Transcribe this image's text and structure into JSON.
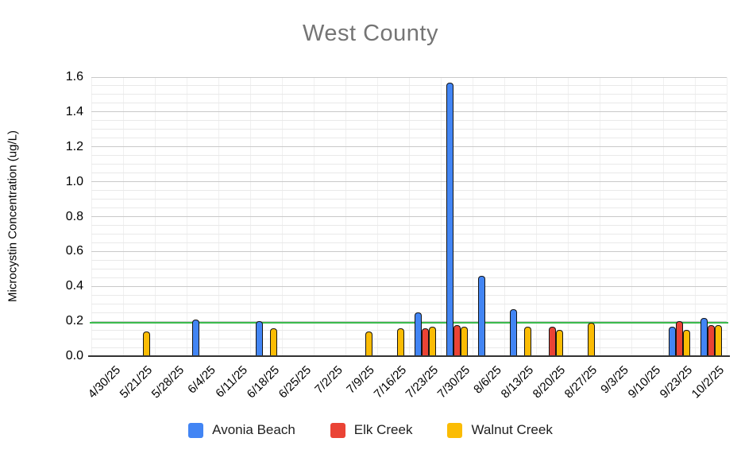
{
  "chart_data": {
    "type": "bar",
    "title": "West County",
    "xlabel": "",
    "ylabel": "Microcystin Concentration (ug/L)",
    "ylim": [
      0,
      1.6
    ],
    "y_major_step": 0.2,
    "y_minor_step": 0.05,
    "y_tick_labels": [
      "0.0",
      "0.2",
      "0.4",
      "0.6",
      "0.8",
      "1.0",
      "1.2",
      "1.4",
      "1.6"
    ],
    "grid": true,
    "legend_position": "bottom",
    "threshold_line": {
      "value": 0.19,
      "color": "#3cbb4e"
    },
    "categories": [
      "4/30/25",
      "5/21/25",
      "5/28/25",
      "6/4/25",
      "6/11/25",
      "6/18/25",
      "6/25/25",
      "7/2/25",
      "7/9/25",
      "7/16/25",
      "7/23/25",
      "7/30/25",
      "8/6/25",
      "8/13/25",
      "8/20/25",
      "8/27/25",
      "9/3/25",
      "9/10/25",
      "9/23/25",
      "10/2/25"
    ],
    "series": [
      {
        "name": "Avonia Beach",
        "color": "#4285F4",
        "values": [
          null,
          null,
          null,
          0.21,
          null,
          0.2,
          null,
          null,
          null,
          null,
          0.25,
          1.57,
          0.46,
          0.27,
          null,
          null,
          null,
          null,
          0.17,
          0.22
        ]
      },
      {
        "name": "Elk Creek",
        "color": "#EA4335",
        "values": [
          null,
          null,
          null,
          null,
          null,
          null,
          null,
          null,
          null,
          null,
          0.16,
          0.18,
          null,
          null,
          0.17,
          null,
          null,
          null,
          0.2,
          0.18
        ]
      },
      {
        "name": "Walnut Creek",
        "color": "#FBBC04",
        "values": [
          null,
          0.14,
          null,
          null,
          null,
          0.16,
          null,
          null,
          0.14,
          0.16,
          0.17,
          0.17,
          null,
          0.17,
          0.15,
          0.19,
          null,
          null,
          0.15,
          0.18
        ]
      }
    ]
  }
}
